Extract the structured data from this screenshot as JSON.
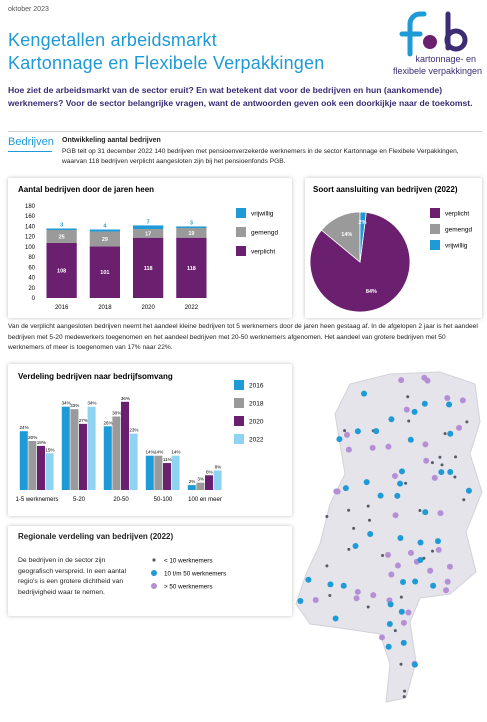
{
  "header": {
    "date": "oktober 2023",
    "title_lines": [
      "Kengetallen arbeidsmarkt",
      "Kartonnage en Flexibele Verpakkingen"
    ],
    "logo_text": [
      "kartonnage- en",
      "flexibele verpakkingen"
    ]
  },
  "intro": "Hoe ziet de arbeidsmarkt van de sector eruit? En wat betekent dat voor de bedrijven en hun (aankomende) werknemers? Voor de sector belangrijke vragen, want de antwoorden geven ook een doorkijkje naar de toekomst.",
  "section": {
    "heading": "Bedrijven",
    "subheading": "Ontwikkeling aantal bedrijven",
    "text": "PGB telt op 31 december 2022 140 bedrijven met pensioenverzekerde werknemers in de sector Kartonnage en Flexibele Verpakkingen, waarvan 118 bedrijven verplicht aangesloten zijn bij het pensioenfonds PGB."
  },
  "paragraph": "Van de verplicht aangesloten bedrijven neemt het aandeel kleine bedrijven tot 5 werknemers door de jaren heen gestaag af. In de afgelopen 2 jaar is het aandeel bedrijven met 5-20 medewerkers toegenomen en het aandeel bedrijven met 20-50 werknemers afgenomen. Het aandeel van grotere bedrijven met 50 werknemers of meer is toegenomen van 17% naar 22%.",
  "regional": {
    "title": "Regionale verdeling van bedrijven (2022)",
    "text": "De bedrijven in de sector zijn geografisch verspreid. In een aantal regio's is een grotere dichtheid van bedrijvigheid waar te nemen.",
    "legend": [
      {
        "name": "< 10 werknemers",
        "color": "#555a66"
      },
      {
        "name": "10 t/m 50 werknemers",
        "color": "#1e9ad6"
      },
      {
        "name": "> 50 werknemers",
        "color": "#b58fd6"
      }
    ]
  },
  "chart_data": [
    {
      "type": "stacked_bar",
      "title": "Aantal bedrijven door de jaren heen",
      "categories": [
        "2016",
        "2018",
        "2020",
        "2022"
      ],
      "series": [
        {
          "name": "verplicht",
          "color": "#6b1f6f",
          "values": [
            108,
            101,
            118,
            118
          ]
        },
        {
          "name": "gemengd",
          "color": "#9a9a9a",
          "values": [
            25,
            29,
            17,
            19
          ]
        },
        {
          "name": "vrijwillig",
          "color": "#1e9ad6",
          "values": [
            3,
            4,
            7,
            3
          ]
        }
      ],
      "ylim": [
        0,
        180
      ],
      "yticks": [
        0,
        20,
        40,
        60,
        80,
        100,
        120,
        140,
        160,
        180
      ],
      "grid": false
    },
    {
      "type": "pie",
      "title": "Soort aansluiting van bedrijven (2022)",
      "categories": [
        "verplicht",
        "gemengd",
        "vrijwillig"
      ],
      "values": [
        84,
        14,
        2
      ],
      "value_labels": [
        "84%",
        "14%",
        "2%"
      ],
      "colors": [
        "#6b1f6f",
        "#9a9a9a",
        "#1e9ad6"
      ]
    },
    {
      "type": "grouped_bar",
      "title": "Verdeling bedrijven naar bedrijfsomvang",
      "categories": [
        "1-5 werknemers",
        "5-20",
        "20-50",
        "50-100",
        "100 en meer"
      ],
      "series": [
        {
          "name": "2016",
          "color": "#1e9ad6",
          "values": [
            24,
            34,
            26,
            14,
            2
          ],
          "value_labels": [
            "24%",
            "34%",
            "26%",
            "14%",
            "2%"
          ]
        },
        {
          "name": "2018",
          "color": "#9a9a9a",
          "values": [
            20,
            33,
            30,
            14,
            3
          ],
          "value_labels": [
            "20%",
            "33%",
            "30%",
            "14%",
            "3%"
          ]
        },
        {
          "name": "2020",
          "color": "#6b1f6f",
          "values": [
            18,
            27,
            36,
            11,
            6
          ],
          "value_labels": [
            "18%",
            "27%",
            "36%",
            "11%",
            "6%"
          ]
        },
        {
          "name": "2022",
          "color": "#8fd3f2",
          "values": [
            15,
            34,
            23,
            14,
            8
          ],
          "value_labels": [
            "15%",
            "34%",
            "23%",
            "14%",
            "8%"
          ]
        }
      ],
      "ylim": [
        0,
        40
      ]
    }
  ]
}
